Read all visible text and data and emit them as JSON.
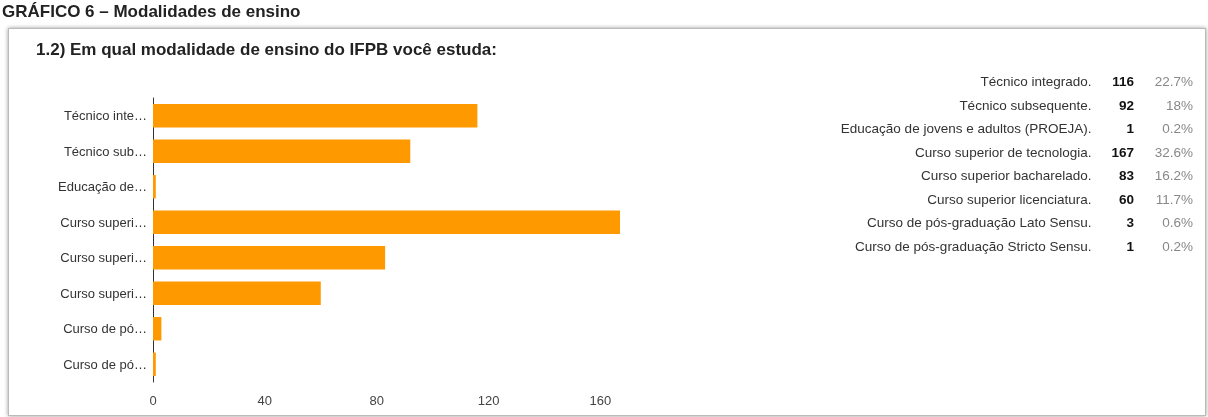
{
  "chart_data": [
    {
      "type": "bar",
      "orientation": "horizontal",
      "title": "1.2) Em qual modalidade de ensino do IFPB você estuda:",
      "annotations": [
        "GRÁFICO 6 – Modalidades de ensino"
      ],
      "categories": [
        "Técnico inte…",
        "Técnico sub…",
        "Educação de…",
        "Curso superi…",
        "Curso superi…",
        "Curso superi…",
        "Curso de pó…",
        "Curso de pó…"
      ],
      "values": [
        116,
        92,
        1,
        167,
        83,
        60,
        3,
        1
      ],
      "color": "#ff9900",
      "xlim": [
        0,
        167
      ],
      "xticks": [
        0,
        40,
        80,
        120,
        160
      ],
      "grid": false
    },
    {
      "type": "other",
      "categories": [
        "Técnico integrado.",
        "Técnico subsequente.",
        "Educação de jovens e adultos (PROEJA).",
        "Curso superior de tecnologia.",
        "Curso superior bacharelado.",
        "Curso superior licenciatura.",
        "Curso de pós-graduação Lato Sensu.",
        "Curso de pós-graduação Stricto Sensu."
      ],
      "values": [
        116,
        92,
        1,
        167,
        83,
        60,
        3,
        1
      ],
      "annotations": [
        "22.7%",
        "18%",
        "0.2%",
        "32.6%",
        "16.2%",
        "11.7%",
        "0.6%",
        "0.2%"
      ],
      "data_labels": true
    }
  ]
}
